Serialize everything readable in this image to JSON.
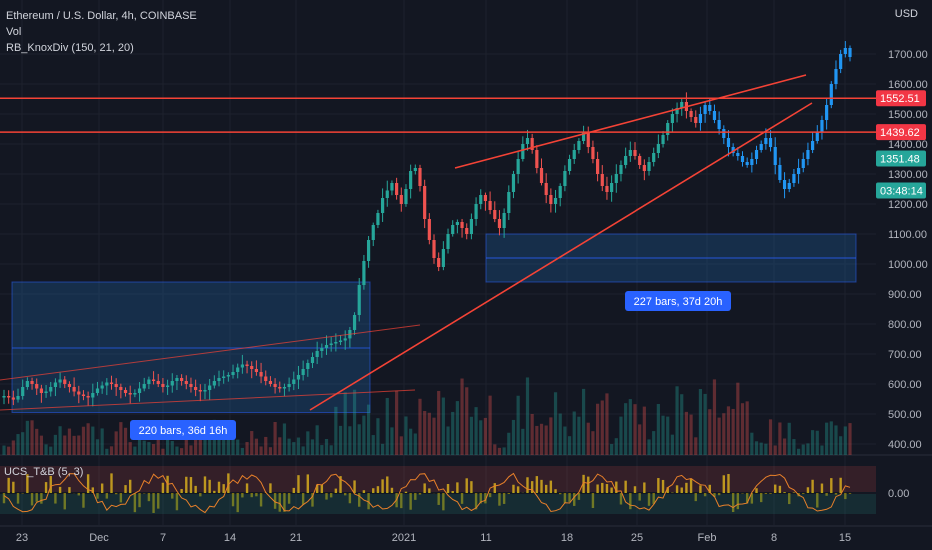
{
  "legend": {
    "symbol": "Ethereum / U.S. Dollar, 4h, COINBASE",
    "volume": "Vol",
    "indicator": "RB_KnoxDiv (150, 21, 20)"
  },
  "sub_indicator": "UCS_T&B (5, 3)",
  "currency": "USD",
  "colors": {
    "background": "#131722",
    "up": "#26a69a",
    "down": "#ef5350",
    "recent": "#2196f3",
    "trendline": "#f44336",
    "range_box": "#1e5a96",
    "osc_yellow": "#c8b416",
    "osc_orange": "#e8802a"
  },
  "chart_data": {
    "type": "candlestick",
    "y_axis": {
      "ticks": [
        "1700.00",
        "1600.00",
        "1500.00",
        "1400.00",
        "1300.00",
        "1200.00",
        "1100.00",
        "1000.00",
        "900.00",
        "800.00",
        "700.00",
        "600.00",
        "500.00",
        "400.00"
      ],
      "range": [
        350,
        1800
      ]
    },
    "x_axis": {
      "ticks": [
        "23",
        "Dec",
        "7",
        "14",
        "21",
        "2021",
        "11",
        "18",
        "25",
        "Feb",
        "8",
        "15"
      ]
    },
    "price_tags": [
      {
        "value": "1552.51",
        "color": "#f23645",
        "price": 1552.51
      },
      {
        "value": "1439.62",
        "color": "#f23645",
        "price": 1439.62
      },
      {
        "value": "1351.48",
        "color": "#26a69a",
        "price": 1351.48
      },
      {
        "value": "03:48:14",
        "color": "#26a69a",
        "price": 1245
      }
    ],
    "horizontal_lines": [
      1552.51,
      1439.62
    ],
    "measurements": [
      {
        "label": "220 bars, 36d 16h",
        "price_top": 940,
        "price_bottom": 505
      },
      {
        "label": "227 bars, 37d 20h",
        "price_top": 1100,
        "price_bottom": 940
      }
    ],
    "oscillator": {
      "ticks": [
        "0.00"
      ]
    },
    "close_series": [
      560,
      555,
      548,
      560,
      590,
      610,
      600,
      585,
      570,
      575,
      590,
      605,
      615,
      600,
      590,
      575,
      565,
      560,
      555,
      570,
      585,
      595,
      605,
      600,
      590,
      580,
      570,
      565,
      570,
      585,
      600,
      615,
      610,
      600,
      590,
      595,
      610,
      620,
      610,
      600,
      590,
      580,
      575,
      580,
      595,
      610,
      620,
      625,
      630,
      640,
      655,
      665,
      660,
      650,
      640,
      625,
      610,
      600,
      590,
      585,
      590,
      600,
      615,
      630,
      650,
      670,
      690,
      710,
      720,
      730,
      735,
      740,
      745,
      752,
      780,
      830,
      930,
      1010,
      1080,
      1130,
      1170,
      1220,
      1245,
      1270,
      1230,
      1200,
      1250,
      1310,
      1320,
      1260,
      1150,
      1080,
      1020,
      990,
      1050,
      1100,
      1130,
      1140,
      1120,
      1100,
      1150,
      1200,
      1230,
      1210,
      1180,
      1150,
      1120,
      1170,
      1240,
      1300,
      1350,
      1400,
      1420,
      1380,
      1320,
      1270,
      1230,
      1200,
      1220,
      1260,
      1310,
      1350,
      1380,
      1410,
      1440,
      1390,
      1350,
      1300,
      1260,
      1240,
      1270,
      1300,
      1330,
      1360,
      1380,
      1360,
      1330,
      1310,
      1340,
      1370,
      1400,
      1430,
      1470,
      1500,
      1520,
      1540,
      1510,
      1490,
      1470,
      1500,
      1530,
      1510,
      1480,
      1450,
      1420,
      1390,
      1370,
      1360,
      1340,
      1330,
      1350,
      1380,
      1400,
      1420,
      1390,
      1330,
      1280,
      1250,
      1270,
      1300,
      1320,
      1350,
      1380,
      1410,
      1440,
      1480,
      1530,
      1600,
      1650,
      1700,
      1720,
      1690
    ]
  }
}
